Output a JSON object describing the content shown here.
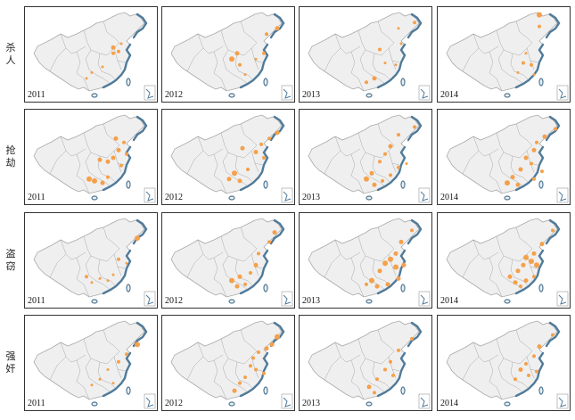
{
  "rows": [
    {
      "label": [
        "杀",
        "人"
      ],
      "years": [
        {
          "year": "2011",
          "dots": [
            [
              0.66,
              0.42,
              2.5
            ],
            [
              0.66,
              0.48,
              2
            ],
            [
              0.7,
              0.46,
              2
            ],
            [
              0.5,
              0.68,
              1.5
            ],
            [
              0.46,
              0.74,
              1.5
            ],
            [
              0.58,
              0.62,
              1.5
            ],
            [
              0.72,
              0.38,
              1.5
            ]
          ]
        },
        {
          "year": "2012",
          "dots": [
            [
              0.86,
              0.22,
              2.5
            ],
            [
              0.78,
              0.28,
              2
            ],
            [
              0.56,
              0.48,
              2.5
            ],
            [
              0.52,
              0.54,
              3
            ],
            [
              0.58,
              0.6,
              2
            ],
            [
              0.76,
              0.48,
              2
            ],
            [
              0.62,
              0.7,
              1.5
            ],
            [
              0.7,
              0.54,
              1.5
            ]
          ]
        },
        {
          "year": "2013",
          "dots": [
            [
              0.86,
              0.16,
              2
            ],
            [
              0.74,
              0.22,
              1.5
            ],
            [
              0.6,
              0.44,
              2
            ],
            [
              0.56,
              0.74,
              2.5
            ],
            [
              0.5,
              0.78,
              2
            ],
            [
              0.72,
              0.6,
              1.5
            ],
            [
              0.76,
              0.38,
              1.5
            ],
            [
              0.64,
              0.58,
              1.5
            ]
          ]
        },
        {
          "year": "2014",
          "dots": [
            [
              0.76,
              0.08,
              3
            ],
            [
              0.76,
              0.2,
              2
            ],
            [
              0.64,
              0.58,
              2
            ],
            [
              0.7,
              0.6,
              2
            ],
            [
              0.6,
              0.68,
              1.5
            ],
            [
              0.66,
              0.48,
              1.5
            ],
            [
              0.72,
              0.7,
              1.5
            ]
          ]
        }
      ]
    },
    {
      "label": [
        "抢",
        "劫"
      ],
      "years": [
        {
          "year": "2011",
          "dots": [
            [
              0.68,
              0.3,
              2.5
            ],
            [
              0.74,
              0.34,
              2
            ],
            [
              0.7,
              0.42,
              2.5
            ],
            [
              0.66,
              0.5,
              2.5
            ],
            [
              0.62,
              0.54,
              2.5
            ],
            [
              0.56,
              0.52,
              2.5
            ],
            [
              0.76,
              0.46,
              2
            ],
            [
              0.48,
              0.72,
              3
            ],
            [
              0.52,
              0.74,
              3
            ],
            [
              0.58,
              0.76,
              2.5
            ],
            [
              0.62,
              0.7,
              2
            ],
            [
              0.72,
              0.58,
              2
            ]
          ]
        },
        {
          "year": "2012",
          "dots": [
            [
              0.86,
              0.24,
              2.5
            ],
            [
              0.8,
              0.3,
              2
            ],
            [
              0.74,
              0.36,
              2
            ],
            [
              0.7,
              0.44,
              2.5
            ],
            [
              0.76,
              0.5,
              2
            ],
            [
              0.6,
              0.4,
              2.5
            ],
            [
              0.54,
              0.66,
              3
            ],
            [
              0.5,
              0.72,
              2.5
            ],
            [
              0.58,
              0.74,
              2.5
            ],
            [
              0.64,
              0.62,
              2
            ]
          ]
        },
        {
          "year": "2013",
          "dots": [
            [
              0.86,
              0.18,
              2
            ],
            [
              0.74,
              0.26,
              2
            ],
            [
              0.68,
              0.38,
              2.5
            ],
            [
              0.64,
              0.46,
              2
            ],
            [
              0.6,
              0.54,
              2
            ],
            [
              0.54,
              0.66,
              2.5
            ],
            [
              0.5,
              0.72,
              3
            ],
            [
              0.56,
              0.78,
              2.5
            ],
            [
              0.62,
              0.74,
              2
            ],
            [
              0.68,
              0.68,
              2
            ],
            [
              0.74,
              0.6,
              2
            ],
            [
              0.8,
              0.56,
              1.5
            ]
          ]
        },
        {
          "year": "2014",
          "dots": [
            [
              0.88,
              0.2,
              2
            ],
            [
              0.8,
              0.28,
              2.5
            ],
            [
              0.74,
              0.34,
              2
            ],
            [
              0.72,
              0.42,
              2.5
            ],
            [
              0.66,
              0.5,
              2.5
            ],
            [
              0.7,
              0.56,
              2
            ],
            [
              0.62,
              0.62,
              2.5
            ],
            [
              0.56,
              0.7,
              2.5
            ],
            [
              0.52,
              0.76,
              3
            ],
            [
              0.6,
              0.78,
              2.5
            ],
            [
              0.72,
              0.72,
              2
            ],
            [
              0.78,
              0.64,
              2
            ]
          ]
        }
      ]
    },
    {
      "label": [
        "盗",
        "窃"
      ],
      "years": [
        {
          "year": "2011",
          "dots": [
            [
              0.84,
              0.26,
              3
            ],
            [
              0.7,
              0.48,
              2
            ],
            [
              0.76,
              0.52,
              1.5
            ],
            [
              0.46,
              0.66,
              2
            ],
            [
              0.5,
              0.72,
              1.5
            ],
            [
              0.56,
              0.68,
              1.5
            ],
            [
              0.62,
              0.7,
              1.5
            ],
            [
              0.66,
              0.64,
              1.5
            ]
          ]
        },
        {
          "year": "2012",
          "dots": [
            [
              0.84,
              0.2,
              2.5
            ],
            [
              0.8,
              0.3,
              2
            ],
            [
              0.72,
              0.42,
              2
            ],
            [
              0.7,
              0.54,
              2.5
            ],
            [
              0.66,
              0.62,
              2
            ],
            [
              0.58,
              0.66,
              2.5
            ],
            [
              0.52,
              0.7,
              3
            ],
            [
              0.56,
              0.76,
              2.5
            ],
            [
              0.62,
              0.74,
              2
            ]
          ]
        },
        {
          "year": "2013",
          "dots": [
            [
              0.84,
              0.18,
              2
            ],
            [
              0.76,
              0.3,
              2.5
            ],
            [
              0.72,
              0.42,
              2.5
            ],
            [
              0.68,
              0.48,
              3
            ],
            [
              0.64,
              0.52,
              3
            ],
            [
              0.72,
              0.56,
              3
            ],
            [
              0.78,
              0.54,
              2.5
            ],
            [
              0.6,
              0.6,
              2.5
            ],
            [
              0.54,
              0.7,
              3
            ],
            [
              0.58,
              0.76,
              2.5
            ],
            [
              0.66,
              0.74,
              2.5
            ],
            [
              0.74,
              0.68,
              2.5
            ],
            [
              0.5,
              0.74,
              2
            ]
          ]
        },
        {
          "year": "2014",
          "dots": [
            [
              0.86,
              0.18,
              2
            ],
            [
              0.78,
              0.32,
              2.5
            ],
            [
              0.72,
              0.42,
              2.5
            ],
            [
              0.66,
              0.46,
              3
            ],
            [
              0.7,
              0.5,
              3
            ],
            [
              0.74,
              0.54,
              3
            ],
            [
              0.64,
              0.54,
              2.5
            ],
            [
              0.6,
              0.6,
              2.5
            ],
            [
              0.54,
              0.66,
              2.5
            ],
            [
              0.58,
              0.72,
              2.5
            ],
            [
              0.66,
              0.7,
              2.5
            ],
            [
              0.72,
              0.66,
              2
            ],
            [
              0.62,
              0.76,
              2
            ]
          ]
        }
      ]
    },
    {
      "label": [
        "强",
        "奸"
      ],
      "years": [
        {
          "year": "2011",
          "dots": [
            [
              0.84,
              0.3,
              3
            ],
            [
              0.76,
              0.4,
              2
            ],
            [
              0.7,
              0.48,
              2
            ],
            [
              0.62,
              0.56,
              1.5
            ],
            [
              0.56,
              0.66,
              1.5
            ],
            [
              0.5,
              0.72,
              1.5
            ],
            [
              0.66,
              0.7,
              1.5
            ]
          ]
        },
        {
          "year": "2012",
          "dots": [
            [
              0.86,
              0.22,
              3
            ],
            [
              0.82,
              0.3,
              2.5
            ],
            [
              0.78,
              0.34,
              2.5
            ],
            [
              0.72,
              0.38,
              2
            ],
            [
              0.68,
              0.44,
              2
            ],
            [
              0.66,
              0.52,
              2
            ],
            [
              0.7,
              0.56,
              2
            ],
            [
              0.62,
              0.64,
              2
            ],
            [
              0.58,
              0.7,
              2
            ],
            [
              0.54,
              0.78,
              2.5
            ],
            [
              0.76,
              0.6,
              2
            ]
          ]
        },
        {
          "year": "2013",
          "dots": [
            [
              0.84,
              0.24,
              2
            ],
            [
              0.74,
              0.36,
              2
            ],
            [
              0.68,
              0.48,
              2
            ],
            [
              0.64,
              0.56,
              2
            ],
            [
              0.58,
              0.66,
              2
            ],
            [
              0.52,
              0.74,
              2.5
            ],
            [
              0.56,
              0.8,
              2
            ],
            [
              0.7,
              0.62,
              2
            ]
          ]
        },
        {
          "year": "2014",
          "dots": [
            [
              0.86,
              0.2,
              2
            ],
            [
              0.76,
              0.32,
              2.5
            ],
            [
              0.72,
              0.42,
              2
            ],
            [
              0.66,
              0.5,
              2
            ],
            [
              0.62,
              0.56,
              2.5
            ],
            [
              0.68,
              0.62,
              2
            ],
            [
              0.58,
              0.66,
              2
            ],
            [
              0.74,
              0.58,
              2
            ]
          ]
        }
      ]
    }
  ],
  "colors": {
    "dot": "#f5a04a",
    "land": "#efefef",
    "border": "#a9a9a9",
    "coast": "#4f7a9a"
  }
}
